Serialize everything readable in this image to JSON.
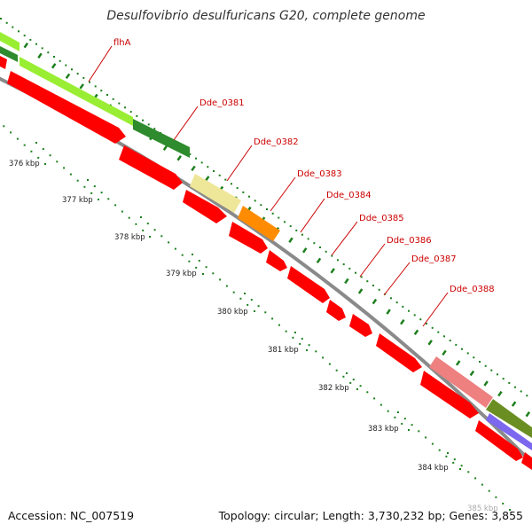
{
  "title": "Desulfovibrio desulfuricans G20, complete genome",
  "accession_label": "Accession: NC_007519",
  "summary_label": "Topology: circular; Length: 3,730,232 bp; Genes: 3,855",
  "colors": {
    "backbone": "#888888",
    "cds": "#ff0000",
    "tick": "#1c7f1c",
    "gene_label": "#cc0000",
    "lime": "#99ee33",
    "dark_green": "#2e8b2e",
    "khaki": "#eee699",
    "orange": "#ff8c00",
    "salmon": "#ee8080",
    "olive": "#6b8e23",
    "slate_blue": "#7b68ee"
  },
  "ticks": [
    {
      "label": "376 kbp"
    },
    {
      "label": "377 kbp"
    },
    {
      "label": "378 kbp"
    },
    {
      "label": "379 kbp"
    },
    {
      "label": "380 kbp"
    },
    {
      "label": "381 kbp"
    },
    {
      "label": "382 kbp"
    },
    {
      "label": "383 kbp"
    },
    {
      "label": "384 kbp"
    },
    {
      "label": "385 kbp"
    }
  ],
  "gene_labels": [
    {
      "name": "flhA"
    },
    {
      "name": "Dde_0381"
    },
    {
      "name": "Dde_0382"
    },
    {
      "name": "Dde_0383"
    },
    {
      "name": "Dde_0384"
    },
    {
      "name": "Dde_0385"
    },
    {
      "name": "Dde_0386"
    },
    {
      "name": "Dde_0387"
    },
    {
      "name": "Dde_0388"
    }
  ]
}
